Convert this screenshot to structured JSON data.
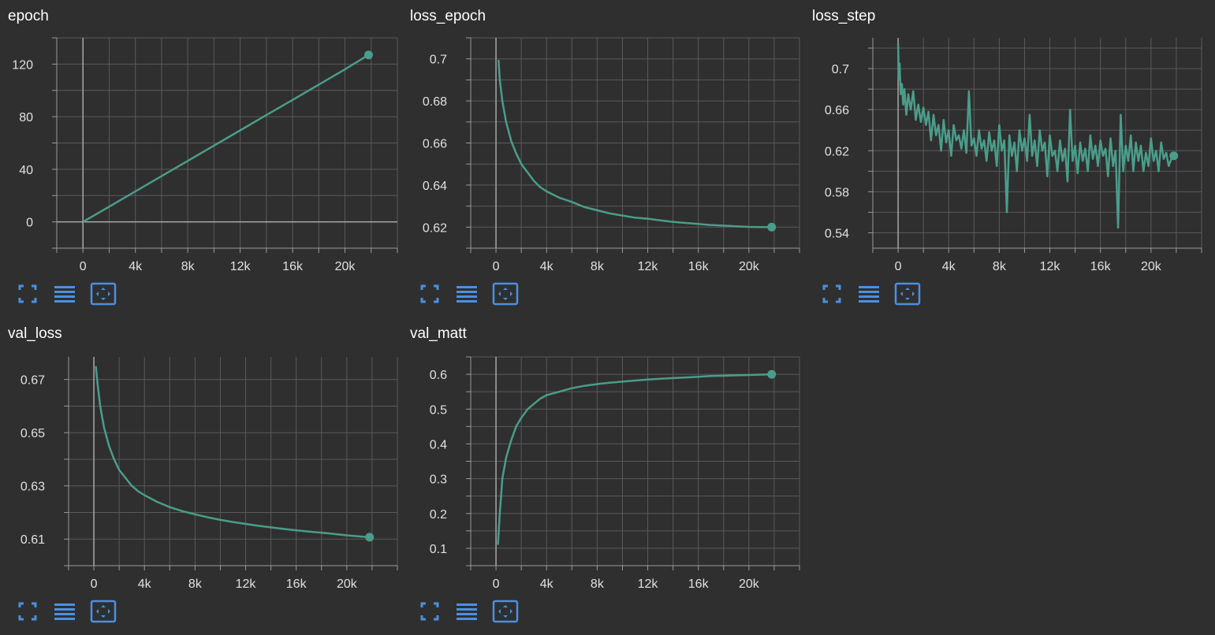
{
  "theme": {
    "background": "#2f2f2f",
    "series_color": "#4a9d8a",
    "icon_color": "#4a90e2",
    "grid_color": "#5a5a5a"
  },
  "icon_names": [
    "fullscreen-icon",
    "list-icon",
    "fit-domain-icon"
  ],
  "chart_data": [
    {
      "id": "epoch",
      "title": "epoch",
      "type": "line",
      "xlim": [
        -2000,
        24000
      ],
      "ylim": [
        -20,
        140
      ],
      "xticks": [
        0,
        4000,
        8000,
        12000,
        16000,
        20000
      ],
      "xtick_labels": [
        "0",
        "4k",
        "8k",
        "12k",
        "16k",
        "20k"
      ],
      "yticks": [
        0,
        40,
        80,
        120
      ],
      "ytick_labels": [
        "0",
        "40",
        "80",
        "120"
      ],
      "series": [
        {
          "x": [
            0,
            2000,
            4000,
            6000,
            8000,
            10000,
            12000,
            14000,
            16000,
            18000,
            20000,
            21800
          ],
          "y": [
            0,
            11.6,
            23.2,
            34.8,
            46.4,
            58,
            69.6,
            81.2,
            92.8,
            104.4,
            116,
            127
          ]
        }
      ]
    },
    {
      "id": "loss_epoch",
      "title": "loss_epoch",
      "type": "line",
      "xlim": [
        -2000,
        24000
      ],
      "ylim": [
        0.61,
        0.71
      ],
      "xticks": [
        0,
        4000,
        8000,
        12000,
        16000,
        20000
      ],
      "xtick_labels": [
        "0",
        "4k",
        "8k",
        "12k",
        "16k",
        "20k"
      ],
      "yticks": [
        0.62,
        0.64,
        0.66,
        0.68,
        0.7
      ],
      "ytick_labels": [
        "0.62",
        "0.64",
        "0.66",
        "0.68",
        "0.7"
      ],
      "series": [
        {
          "x": [
            200,
            300,
            500,
            800,
            1200,
            1600,
            2000,
            2500,
            3000,
            3500,
            4000,
            5000,
            6000,
            7000,
            8000,
            9000,
            10000,
            11000,
            12000,
            13000,
            14000,
            15000,
            16000,
            17000,
            18000,
            19000,
            20000,
            21000,
            21800
          ],
          "y": [
            0.6995,
            0.69,
            0.68,
            0.67,
            0.661,
            0.655,
            0.65,
            0.646,
            0.642,
            0.639,
            0.637,
            0.634,
            0.632,
            0.6295,
            0.628,
            0.6265,
            0.6255,
            0.6245,
            0.624,
            0.6232,
            0.6225,
            0.622,
            0.6215,
            0.621,
            0.6207,
            0.6204,
            0.6201,
            0.62,
            0.62
          ]
        }
      ]
    },
    {
      "id": "loss_step",
      "title": "loss_step",
      "type": "line",
      "xlim": [
        -2000,
        24000
      ],
      "ylim": [
        0.525,
        0.73
      ],
      "xticks": [
        0,
        4000,
        8000,
        12000,
        16000,
        20000
      ],
      "xtick_labels": [
        "0",
        "4k",
        "8k",
        "12k",
        "16k",
        "20k"
      ],
      "yticks": [
        0.54,
        0.58,
        0.62,
        0.66,
        0.7
      ],
      "ytick_labels": [
        "0.54",
        "0.58",
        "0.62",
        "0.66",
        "0.7"
      ],
      "series": [
        {
          "x": [
            0,
            60,
            120,
            200,
            300,
            400,
            500,
            650,
            800,
            1000,
            1200,
            1400,
            1600,
            1800,
            2000,
            2200,
            2400,
            2600,
            2800,
            3000,
            3200,
            3400,
            3600,
            3800,
            4000,
            4200,
            4400,
            4600,
            4800,
            5000,
            5200,
            5400,
            5600,
            5800,
            6000,
            6200,
            6400,
            6600,
            6800,
            7000,
            7200,
            7400,
            7600,
            7800,
            8000,
            8200,
            8400,
            8600,
            8800,
            9000,
            9200,
            9400,
            9600,
            9800,
            10000,
            10200,
            10400,
            10600,
            10800,
            11000,
            11200,
            11400,
            11600,
            11800,
            12000,
            12200,
            12400,
            12600,
            12800,
            13000,
            13200,
            13400,
            13600,
            13800,
            14000,
            14200,
            14400,
            14600,
            14800,
            15000,
            15200,
            15400,
            15600,
            15800,
            16000,
            16200,
            16400,
            16600,
            16800,
            17000,
            17200,
            17400,
            17600,
            17800,
            18000,
            18200,
            18400,
            18600,
            18800,
            19000,
            19200,
            19400,
            19600,
            19800,
            20000,
            20200,
            20400,
            20600,
            20800,
            21000,
            21200,
            21400,
            21600,
            21800
          ],
          "y": [
            0.725,
            0.69,
            0.705,
            0.675,
            0.685,
            0.665,
            0.68,
            0.655,
            0.675,
            0.66,
            0.678,
            0.65,
            0.665,
            0.648,
            0.662,
            0.645,
            0.658,
            0.63,
            0.655,
            0.635,
            0.645,
            0.62,
            0.65,
            0.628,
            0.64,
            0.615,
            0.645,
            0.63,
            0.635,
            0.622,
            0.64,
            0.618,
            0.678,
            0.625,
            0.632,
            0.615,
            0.64,
            0.622,
            0.63,
            0.61,
            0.638,
            0.62,
            0.63,
            0.605,
            0.645,
            0.62,
            0.63,
            0.56,
            0.635,
            0.615,
            0.628,
            0.6,
            0.64,
            0.62,
            0.632,
            0.61,
            0.655,
            0.615,
            0.63,
            0.605,
            0.64,
            0.62,
            0.628,
            0.595,
            0.635,
            0.615,
            0.62,
            0.6,
            0.63,
            0.61,
            0.622,
            0.59,
            0.66,
            0.61,
            0.625,
            0.598,
            0.628,
            0.61,
            0.622,
            0.6,
            0.635,
            0.612,
            0.625,
            0.605,
            0.63,
            0.615,
            0.622,
            0.595,
            0.632,
            0.605,
            0.62,
            0.545,
            0.655,
            0.6,
            0.625,
            0.61,
            0.635,
            0.6,
            0.628,
            0.61,
            0.625,
            0.6,
            0.618,
            0.605,
            0.632,
            0.61,
            0.62,
            0.6,
            0.628,
            0.612,
            0.618,
            0.605,
            0.612,
            0.615
          ]
        }
      ]
    },
    {
      "id": "val_loss",
      "title": "val_loss",
      "type": "line",
      "xlim": [
        -2000,
        24000
      ],
      "ylim": [
        0.6,
        0.6785
      ],
      "xticks": [
        0,
        4000,
        8000,
        12000,
        16000,
        20000
      ],
      "xtick_labels": [
        "0",
        "4k",
        "8k",
        "12k",
        "16k",
        "20k"
      ],
      "yticks": [
        0.61,
        0.63,
        0.65,
        0.67
      ],
      "ytick_labels": [
        "0.61",
        "0.63",
        "0.65",
        "0.67"
      ],
      "series": [
        {
          "x": [
            150,
            300,
            500,
            800,
            1200,
            1600,
            2000,
            2500,
            3000,
            3500,
            4000,
            5000,
            6000,
            7000,
            8000,
            9000,
            10000,
            11000,
            12000,
            13000,
            14000,
            15000,
            16000,
            17000,
            18000,
            19000,
            20000,
            21000,
            21800
          ],
          "y": [
            0.675,
            0.668,
            0.66,
            0.652,
            0.645,
            0.64,
            0.636,
            0.633,
            0.63,
            0.628,
            0.6265,
            0.624,
            0.622,
            0.6205,
            0.6193,
            0.6182,
            0.6172,
            0.6164,
            0.6157,
            0.615,
            0.6144,
            0.6138,
            0.6133,
            0.6128,
            0.6124,
            0.6119,
            0.6114,
            0.611,
            0.6107
          ]
        }
      ]
    },
    {
      "id": "val_matt",
      "title": "val_matt",
      "type": "line",
      "xlim": [
        -2000,
        24000
      ],
      "ylim": [
        0.05,
        0.65
      ],
      "xticks": [
        0,
        4000,
        8000,
        12000,
        16000,
        20000
      ],
      "xtick_labels": [
        "0",
        "4k",
        "8k",
        "12k",
        "16k",
        "20k"
      ],
      "yticks": [
        0.1,
        0.2,
        0.3,
        0.4,
        0.5,
        0.6
      ],
      "ytick_labels": [
        "0.1",
        "0.2",
        "0.3",
        "0.4",
        "0.5",
        "0.6"
      ],
      "series": [
        {
          "x": [
            150,
            300,
            500,
            800,
            1200,
            1600,
            2000,
            2500,
            3000,
            3500,
            4000,
            5000,
            6000,
            7000,
            8000,
            9000,
            10000,
            11000,
            12000,
            13000,
            14000,
            15000,
            16000,
            17000,
            18000,
            19000,
            20000,
            21000,
            21800
          ],
          "y": [
            0.11,
            0.2,
            0.3,
            0.36,
            0.41,
            0.45,
            0.475,
            0.5,
            0.515,
            0.53,
            0.54,
            0.55,
            0.56,
            0.567,
            0.572,
            0.576,
            0.579,
            0.582,
            0.585,
            0.587,
            0.589,
            0.591,
            0.593,
            0.595,
            0.596,
            0.597,
            0.598,
            0.599,
            0.6
          ]
        }
      ]
    }
  ]
}
